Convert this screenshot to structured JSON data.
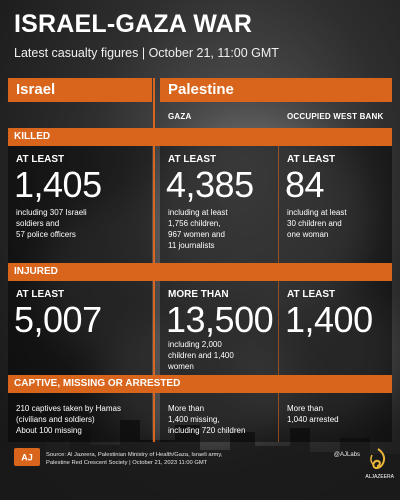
{
  "header": {
    "title": "ISRAEL-GAZA WAR",
    "subtitle": "Latest casualty figures  |  October 21, 11:00 GMT"
  },
  "columns": {
    "israel": "Israel",
    "palestine": "Palestine",
    "gaza": "GAZA",
    "west_bank": "OCCUPIED WEST BANK"
  },
  "sections": {
    "killed": "KILLED",
    "injured": "INJURED",
    "captive": "CAPTIVE, MISSING OR ARRESTED"
  },
  "killed": {
    "israel": {
      "label": "AT LEAST",
      "value": "1,405",
      "note1": "including 307 Israeli",
      "note2": "soldiers and",
      "note3": "57 police officers"
    },
    "gaza": {
      "label": "AT LEAST",
      "value": "4,385",
      "note1": "including at least",
      "note2": "1,756 children,",
      "note3": "967 women and",
      "note4": "11 journalists"
    },
    "west_bank": {
      "label": "AT LEAST",
      "value": "84",
      "note1": "including at least",
      "note2": "30 children and",
      "note3": "one woman"
    }
  },
  "injured": {
    "israel": {
      "label": "AT LEAST",
      "value": "5,007"
    },
    "gaza": {
      "label": "MORE THAN",
      "value": "13,500",
      "note1": "including 2,000",
      "note2": "children and 1,400",
      "note3": "women"
    },
    "west_bank": {
      "label": "AT LEAST",
      "value": "1,400"
    }
  },
  "captive": {
    "israel": {
      "note1": "210 captives taken by Hamas",
      "note2": "(civilians and soldiers)",
      "note3": "About 100 missing"
    },
    "gaza": {
      "note1": "More than",
      "note2": "1,400 missing,",
      "note3": "including 720 children"
    },
    "west_bank": {
      "note1": "More than",
      "note2": "1,040 arrested"
    }
  },
  "footer": {
    "source1": "Source: Al Jazeera, Palestinian Ministry of Health/Gaza, Israeli army,",
    "source2": "Palestine Red Crescent Society  |  October 21, 2023       11:00 GMT",
    "handle": "@AJLabs",
    "brand": "ALJAZEERA"
  },
  "colors": {
    "accent": "#d9651c",
    "background": "#2e2e2e",
    "text": "#ffffff"
  }
}
